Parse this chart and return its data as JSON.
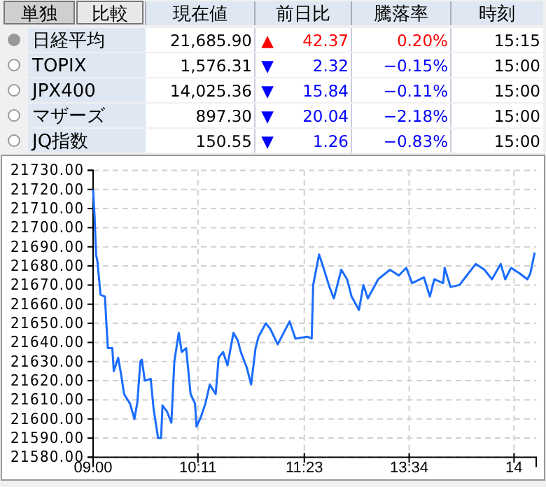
{
  "chart_data": [
    {
      "type": "other",
      "annotations": [
        "単独",
        "比較",
        "現在値",
        "前日比",
        "騰落率",
        "時刻",
        "日経平均",
        "21,685.90",
        "▲",
        "42.37",
        "0.20%",
        "15:15",
        "TOPIX",
        "1,576.31",
        "▼",
        "2.32",
        "−0.15%",
        "15:00",
        "JPX400",
        "14,025.36",
        "▼",
        "15.84",
        "−0.11%",
        "15:00",
        "マザーズ",
        "897.30",
        "▼",
        "20.04",
        "−2.18%",
        "15:00",
        "JQ指数",
        "150.55",
        "▼",
        "1.26",
        "−0.83%",
        "15:00"
      ],
      "colors": [
        "#ff0000",
        "#0000ff",
        "#0000ff",
        "#0000ff",
        "#0000ff"
      ]
    },
    {
      "type": "line",
      "grid": true,
      "categories": [
        "09:00",
        null,
        null,
        null,
        null,
        null,
        null,
        null,
        null,
        null,
        null,
        null,
        null,
        null,
        null,
        null,
        null,
        null,
        null,
        null,
        null,
        null,
        null,
        null,
        null,
        null,
        null,
        null,
        null,
        null,
        null,
        null,
        null,
        null,
        null,
        null,
        null,
        null,
        null,
        null,
        null,
        null,
        null,
        null,
        null,
        null,
        null,
        null,
        null,
        null,
        null,
        null,
        null,
        null,
        null,
        null,
        null,
        null,
        null,
        null,
        null,
        null,
        null,
        null,
        null,
        null,
        null,
        null,
        null,
        null,
        null,
        "10:11",
        null,
        null,
        null,
        null,
        null,
        null,
        null,
        null,
        null,
        null,
        null,
        null,
        null,
        null,
        null,
        null,
        null,
        null,
        null,
        null,
        null,
        null,
        null,
        null,
        null,
        null,
        null,
        null,
        null,
        null,
        null,
        null,
        null,
        null,
        null,
        null,
        null,
        null,
        null,
        null,
        null,
        null,
        null,
        null,
        null,
        null,
        null,
        null,
        null,
        null,
        null,
        null,
        null,
        null,
        null,
        null,
        null,
        null,
        null,
        null,
        null,
        null,
        null,
        null,
        null,
        null,
        null,
        null,
        null,
        null,
        null,
        "11:23",
        null,
        null,
        null,
        null,
        null,
        null,
        null,
        null,
        null,
        null,
        null,
        null,
        null,
        null,
        null,
        null,
        null,
        null,
        null,
        null,
        null,
        null,
        null,
        null,
        null,
        null,
        null,
        null,
        null,
        null,
        null,
        null,
        null,
        null,
        null,
        null,
        null,
        null,
        null,
        null,
        null,
        null,
        null,
        null,
        null,
        null,
        null,
        null,
        null,
        null,
        null,
        null,
        null,
        null,
        null,
        null,
        null,
        null,
        null,
        null,
        null,
        null,
        null,
        null,
        null,
        null,
        null,
        null,
        null,
        null,
        "13:34",
        null,
        null,
        null,
        null,
        null,
        null,
        null,
        null,
        null,
        null,
        null,
        null,
        null,
        null,
        null,
        null,
        null,
        null,
        null,
        null,
        null,
        null,
        null,
        null,
        null,
        null,
        null,
        null,
        null,
        null,
        null,
        null,
        null,
        null,
        null,
        null,
        null,
        null,
        null,
        null,
        null,
        null,
        null,
        null,
        null,
        null,
        null,
        null,
        null,
        null,
        null,
        null,
        null,
        null,
        null,
        null,
        null,
        null,
        null,
        null,
        null,
        null,
        null,
        null,
        null,
        null,
        null,
        null,
        null,
        null,
        "14",
        null,
        null,
        null,
        null,
        null,
        null,
        null,
        null,
        null,
        null,
        null,
        null,
        null,
        null,
        null
      ],
      "ylim": [
        21580,
        21730
      ],
      "yticks": [
        {
          "value": 21580,
          "label": "21580.00"
        },
        {
          "value": 21590,
          "label": "21590.00"
        },
        {
          "value": 21600,
          "label": "21600.00"
        },
        {
          "value": 21610,
          "label": "21610.00"
        },
        {
          "value": 21620,
          "label": "21620.00"
        },
        {
          "value": 21630,
          "label": "21630.00"
        },
        {
          "value": 21640,
          "label": "21640.00"
        },
        {
          "value": 21650,
          "label": "21650.00"
        },
        {
          "value": 21660,
          "label": "21660.00"
        },
        {
          "value": 21670,
          "label": "21670.00"
        },
        {
          "value": 21680,
          "label": "21680.00"
        },
        {
          "value": 21690,
          "label": "21690.00"
        },
        {
          "value": 21700,
          "label": "21700.00"
        },
        {
          "value": 21710,
          "label": "21710.00"
        },
        {
          "value": 21720,
          "label": "21720.00"
        },
        {
          "value": 21730,
          "label": "21730.00"
        }
      ],
      "series": [
        {
          "color": "#1a6cff",
          "values": [
            21720,
            21706,
            21686,
            21682,
            null,
            21665,
            null,
            null,
            21664,
            21650,
            21637,
            null,
            null,
            21637,
            21625,
            null,
            null,
            21632,
            null,
            21623,
            null,
            21613,
            null,
            null,
            null,
            21608,
            null,
            null,
            21600,
            null,
            21609,
            null,
            21630,
            21631,
            null,
            21620,
            null,
            null,
            null,
            21621,
            null,
            21605,
            null,
            null,
            21590,
            null,
            21590,
            21607,
            null,
            null,
            21604,
            null,
            null,
            21598,
            null,
            21630,
            null,
            null,
            21645,
            null,
            21635,
            null,
            null,
            21637,
            null,
            null,
            21613,
            null,
            null,
            21608,
            21596,
            null,
            null,
            21601,
            null,
            null,
            21608,
            null,
            null,
            21618,
            null,
            null,
            null,
            21613,
            null,
            21632,
            null,
            null,
            21635,
            null,
            null,
            21628,
            null,
            null,
            null,
            21645,
            null,
            null,
            21641,
            null,
            21635,
            null,
            null,
            null,
            21627,
            null,
            null,
            21618,
            null,
            null,
            21637,
            null,
            21643,
            null,
            null,
            null,
            null,
            21650,
            null,
            null,
            21647,
            null,
            null,
            null,
            null,
            21639,
            null,
            null,
            null,
            null,
            null,
            null,
            null,
            21651,
            null,
            null,
            null,
            21642,
            null,
            null,
            null,
            null,
            null,
            null,
            null,
            21643,
            null,
            null,
            21642,
            21670,
            null,
            null,
            null,
            21686,
            null,
            null,
            21679,
            null,
            null,
            null,
            21669,
            null,
            null,
            21663,
            null,
            null,
            null,
            null,
            21678,
            null,
            null,
            null,
            21673,
            null,
            null,
            21664,
            null,
            null,
            null,
            null,
            21657,
            null,
            null,
            21670,
            null,
            null,
            21663,
            null,
            null,
            null,
            null,
            null,
            null,
            21673,
            null,
            null,
            null,
            null,
            null,
            null,
            null,
            21678,
            null,
            null,
            null,
            null,
            null,
            21675,
            null,
            null,
            null,
            null,
            21679,
            null,
            null,
            null,
            21671,
            null,
            null,
            null,
            null,
            null,
            null,
            null,
            21674,
            null,
            null,
            null,
            21664,
            null,
            null,
            21673,
            null,
            null,
            null,
            null,
            null,
            21671,
            21679,
            null,
            null,
            null,
            21669,
            null,
            null,
            null,
            null,
            null,
            21670,
            null,
            null,
            null,
            null,
            21675,
            null,
            null,
            null,
            null,
            null,
            21681,
            null,
            null,
            null,
            null,
            null,
            21678,
            null,
            null,
            null,
            null,
            21673,
            null,
            null,
            null,
            null,
            null,
            21681,
            null,
            null,
            21673,
            null,
            null,
            null,
            21679,
            null,
            null,
            null,
            null,
            null,
            21676,
            null,
            null,
            null,
            null,
            21673,
            null,
            21676,
            null,
            null,
            21687,
            null
          ]
        }
      ]
    }
  ]
}
